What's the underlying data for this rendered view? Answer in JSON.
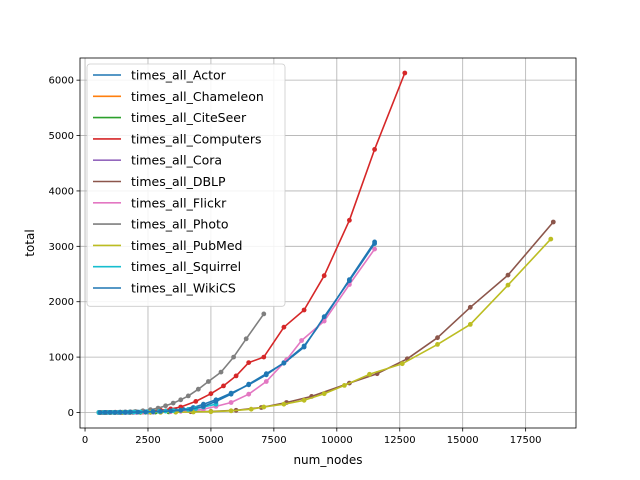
{
  "chart_data": {
    "type": "line",
    "title": "",
    "xlabel": "num_nodes",
    "ylabel": "total",
    "xlim": [
      -200,
      19500
    ],
    "ylim": [
      -280,
      6400
    ],
    "xticks": [
      0,
      2500,
      5000,
      7500,
      10000,
      12500,
      15000,
      17500
    ],
    "yticks": [
      0,
      1000,
      2000,
      3000,
      4000,
      5000,
      6000
    ],
    "grid": true,
    "legend_position": "upper-left",
    "series": [
      {
        "name": "times_all_Actor",
        "color": "#1f77b4",
        "x": [
          600,
          750,
          900,
          1050,
          1200,
          1350,
          1500,
          1650,
          1800,
          1950,
          2100,
          2300,
          2500,
          2700,
          3000,
          3300,
          3600,
          3900,
          4300,
          4700,
          5200,
          5800,
          6500,
          7200,
          7900,
          8700,
          9500,
          10500,
          11500
        ],
        "y": [
          0,
          0,
          1,
          1,
          2,
          2,
          3,
          4,
          5,
          6,
          7,
          9,
          12,
          16,
          22,
          30,
          40,
          55,
          90,
          150,
          230,
          350,
          500,
          680,
          900,
          1200,
          1700,
          2400,
          3080
        ]
      },
      {
        "name": "times_all_Chameleon",
        "color": "#ff7f0e",
        "x": [
          550,
          700,
          850,
          1000,
          1150,
          1300,
          1450,
          1600,
          1750,
          1900,
          2050,
          2227
        ],
        "y": [
          0,
          0,
          1,
          1,
          1,
          2,
          2,
          3,
          3,
          4,
          5,
          6
        ]
      },
      {
        "name": "times_all_CiteSeer",
        "color": "#2ca02c",
        "x": [
          550,
          700,
          850,
          1000,
          1150,
          1300,
          1450,
          1600,
          1750,
          1900,
          2050,
          2200,
          2400,
          2600,
          2800,
          3000,
          3327
        ],
        "y": [
          0,
          0,
          0,
          1,
          1,
          1,
          2,
          2,
          2,
          3,
          3,
          4,
          5,
          6,
          7,
          8,
          10
        ]
      },
      {
        "name": "times_all_Computers",
        "color": "#d62728",
        "x": [
          600,
          800,
          1000,
          1200,
          1400,
          1600,
          1800,
          2000,
          2300,
          2600,
          3000,
          3400,
          3800,
          4400,
          5000,
          5500,
          6000,
          6500,
          7100,
          7900,
          8700,
          9500,
          10500,
          11500,
          12700
        ],
        "y": [
          0,
          1,
          2,
          3,
          4,
          6,
          8,
          11,
          16,
          25,
          40,
          65,
          100,
          200,
          340,
          480,
          660,
          900,
          1000,
          1540,
          1850,
          2470,
          3470,
          4750,
          6130
        ]
      },
      {
        "name": "times_all_Cora",
        "color": "#9467bd",
        "x": [
          550,
          700,
          850,
          1000,
          1150,
          1300,
          1450,
          1600,
          1750,
          1900,
          2050,
          2200,
          2500,
          2708
        ],
        "y": [
          0,
          0,
          0,
          1,
          1,
          1,
          2,
          2,
          2,
          3,
          3,
          4,
          5,
          6
        ]
      },
      {
        "name": "times_all_DBLP",
        "color": "#8c564b",
        "x": [
          600,
          800,
          1000,
          1200,
          1500,
          1800,
          2200,
          2600,
          3000,
          3600,
          4200,
          5000,
          6000,
          7000,
          8000,
          9000,
          10500,
          11600,
          12800,
          14000,
          15300,
          16800,
          18600
        ],
        "y": [
          0,
          0,
          1,
          1,
          2,
          3,
          4,
          6,
          8,
          11,
          14,
          20,
          40,
          90,
          180,
          290,
          530,
          700,
          970,
          1350,
          1900,
          2480,
          3440
        ]
      },
      {
        "name": "times_all_Flickr",
        "color": "#e377c2",
        "x": [
          600,
          800,
          1000,
          1200,
          1400,
          1600,
          1800,
          2000,
          2300,
          2600,
          3000,
          3400,
          3800,
          4200,
          4700,
          5200,
          5800,
          6500,
          7200,
          8000,
          8600,
          9500,
          10500,
          11500
        ],
        "y": [
          0,
          0,
          1,
          1,
          1,
          2,
          2,
          3,
          4,
          6,
          9,
          14,
          22,
          35,
          60,
          110,
          180,
          330,
          560,
          950,
          1300,
          1650,
          2310,
          2950
        ]
      },
      {
        "name": "times_all_Photo",
        "color": "#7f7f7f",
        "x": [
          600,
          800,
          1000,
          1200,
          1400,
          1600,
          1800,
          2000,
          2300,
          2600,
          2900,
          3200,
          3500,
          3800,
          4100,
          4500,
          4900,
          5400,
          5900,
          6400,
          7100
        ],
        "y": [
          0,
          1,
          2,
          3,
          5,
          8,
          12,
          18,
          30,
          50,
          80,
          120,
          170,
          230,
          300,
          420,
          560,
          730,
          1000,
          1330,
          1780
        ]
      },
      {
        "name": "times_all_PubMed",
        "color": "#bcbd22",
        "x": [
          600,
          800,
          1000,
          1200,
          1500,
          1800,
          2200,
          2600,
          3000,
          3600,
          4300,
          5000,
          5800,
          6600,
          7100,
          7900,
          8700,
          9500,
          10300,
          11300,
          12600,
          14000,
          15300,
          16800,
          18500
        ],
        "y": [
          0,
          0,
          0,
          1,
          1,
          1,
          2,
          3,
          4,
          6,
          9,
          14,
          30,
          60,
          100,
          150,
          220,
          340,
          490,
          690,
          880,
          1230,
          1590,
          2300,
          3130
        ]
      },
      {
        "name": "times_all_Squirrel",
        "color": "#17becf",
        "x": [
          550,
          750,
          950,
          1150,
          1350,
          1550,
          1750,
          1950,
          2200,
          2450,
          2700,
          2950,
          3200,
          3500,
          3800,
          4100,
          4400,
          4700,
          5201
        ],
        "y": [
          0,
          1,
          1,
          2,
          3,
          4,
          5,
          7,
          9,
          12,
          16,
          20,
          26,
          34,
          44,
          56,
          72,
          100,
          150
        ]
      },
      {
        "name": "times_all_WikiCS",
        "color": "#1f77b4",
        "x": [
          600,
          800,
          1000,
          1200,
          1400,
          1600,
          1800,
          2100,
          2400,
          2700,
          3000,
          3400,
          3800,
          4200,
          4700,
          5200,
          5800,
          6500,
          7200,
          7900,
          8700,
          9500,
          10500,
          11500
        ],
        "y": [
          0,
          1,
          1,
          2,
          3,
          4,
          5,
          7,
          10,
          14,
          20,
          28,
          40,
          60,
          110,
          200,
          330,
          510,
          700,
          890,
          1180,
          1730,
          2380,
          3050
        ]
      }
    ]
  }
}
